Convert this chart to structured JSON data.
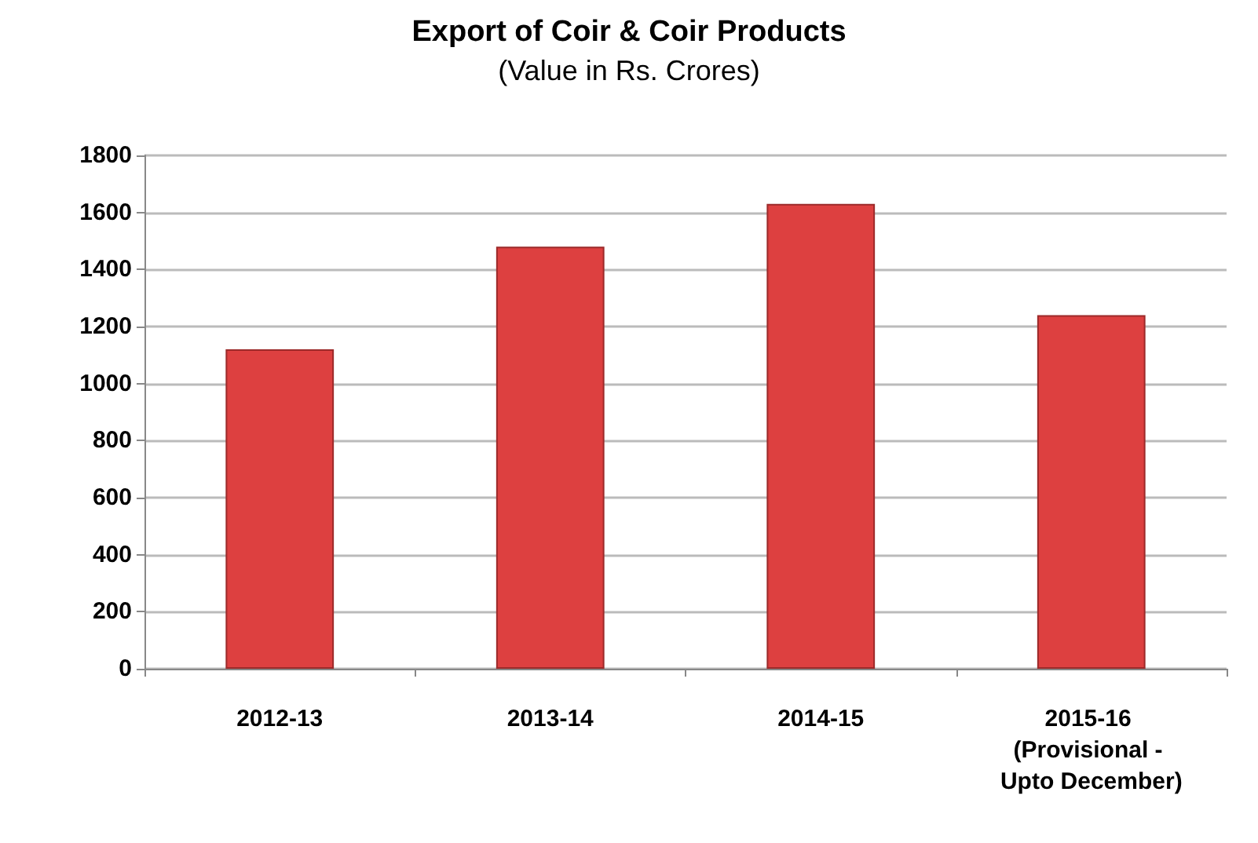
{
  "chart_data": {
    "type": "bar",
    "title": "Export of Coir & Coir Products",
    "subtitle": "(Value in Rs. Crores)",
    "categories": [
      "2012-13",
      "2013-14",
      "2014-15",
      "2015-16 (Provisional - Upto December)"
    ],
    "values": [
      1120,
      1480,
      1630,
      1240
    ],
    "color": "#dd4040",
    "ylim": [
      0,
      1800
    ],
    "yticks": [
      0,
      200,
      400,
      600,
      800,
      1000,
      1200,
      1400,
      1600,
      1800
    ],
    "grid": "y"
  }
}
